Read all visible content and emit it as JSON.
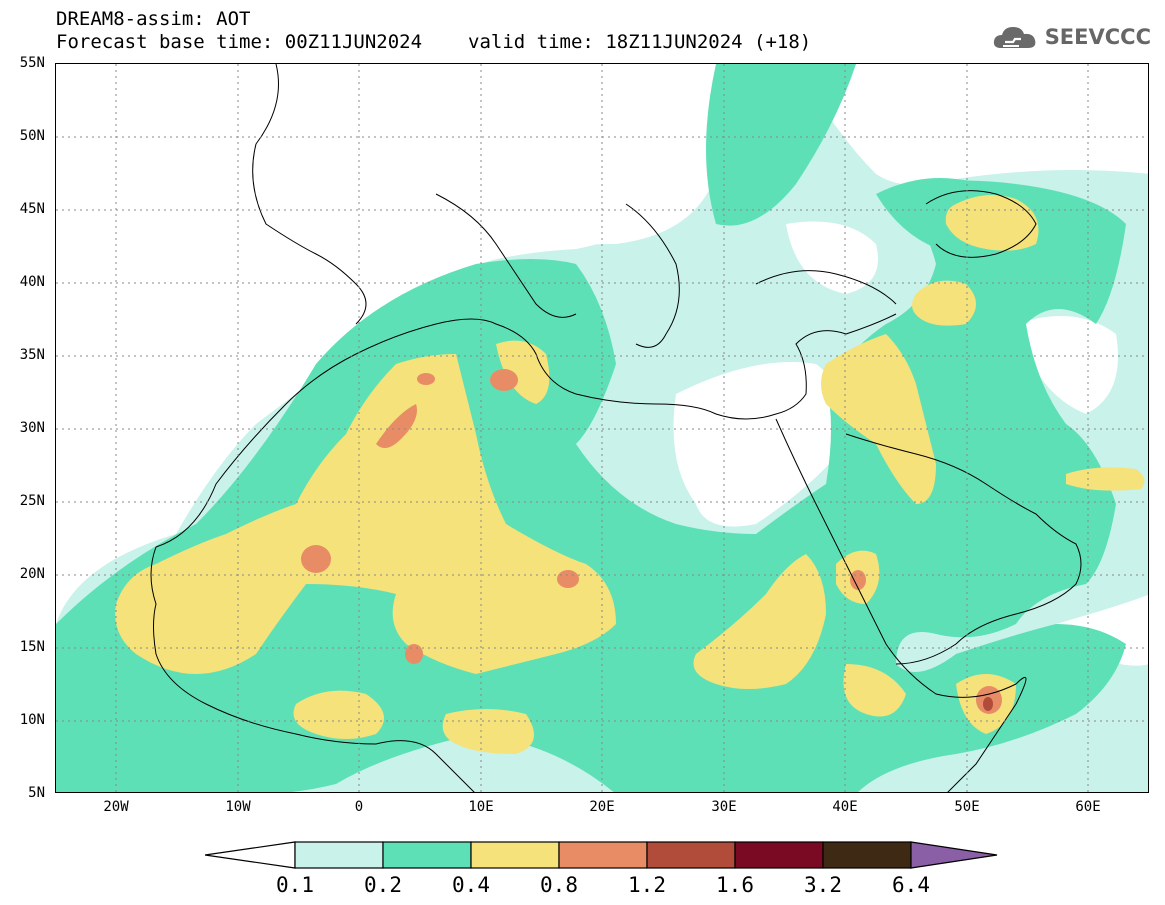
{
  "header": {
    "title": "DREAM8-assim: AOT",
    "forecast_base": "Forecast base time: 00Z11JUN2024",
    "valid_time": "valid time: 18Z11JUN2024 (+18)",
    "logo_text": "SEEVCCC"
  },
  "map": {
    "lat_labels": [
      "55N",
      "50N",
      "45N",
      "40N",
      "35N",
      "30N",
      "25N",
      "20N",
      "15N",
      "10N",
      "5N"
    ],
    "lon_labels": [
      "20W",
      "10W",
      "0",
      "10E",
      "20E",
      "30E",
      "40E",
      "50E",
      "60E"
    ],
    "extent": {
      "lon_min": -25,
      "lon_max": 65,
      "lat_min": 5,
      "lat_max": 55
    },
    "grid": "dotted"
  },
  "colorbar": {
    "labels": [
      "0.1",
      "0.2",
      "0.4",
      "0.8",
      "1.2",
      "1.6",
      "3.2",
      "6.4"
    ],
    "colors": [
      "#ffffff",
      "#c8f2ea",
      "#5ee0b6",
      "#f5e27a",
      "#e88c66",
      "#b24c3a",
      "#7a0a24",
      "#3e2a14",
      "#8a5fa6"
    ]
  }
}
